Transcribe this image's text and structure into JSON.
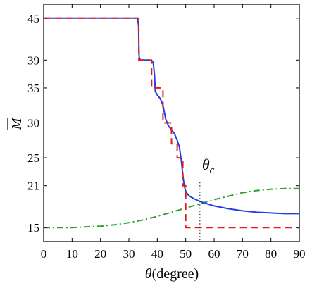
{
  "chart_data": {
    "type": "line",
    "xlabel_symbol": "θ",
    "xlabel_unit": "(degree)",
    "ylabel": "M",
    "xlim": [
      0,
      90
    ],
    "ylim": [
      13,
      47
    ],
    "xticks": [
      0,
      10,
      20,
      30,
      40,
      50,
      60,
      70,
      80,
      90
    ],
    "yticks": [
      15,
      21,
      25,
      30,
      35,
      39,
      45
    ],
    "grid": false,
    "legend": "none",
    "annotation": {
      "symbol": "θ",
      "subscript": "c",
      "x": 55
    },
    "series": [
      {
        "color": "#e8191c",
        "style": "dashed",
        "x": [
          0,
          33.5,
          33.5,
          38,
          38,
          40,
          40,
          42,
          42,
          45,
          45,
          47,
          47,
          49,
          49,
          50,
          50,
          90
        ],
        "y": [
          45,
          45,
          39,
          39,
          35,
          35,
          35,
          35,
          30,
          30,
          27,
          27,
          25,
          25,
          21,
          21,
          15,
          15
        ]
      },
      {
        "color": "#1f3fe0",
        "style": "solid",
        "x": [
          0,
          33,
          33.4,
          33.6,
          34,
          37,
          38.5,
          39,
          39.3,
          40,
          41,
          42,
          43,
          44,
          45,
          46,
          47,
          47.8,
          48.5,
          49,
          49.5,
          50,
          51,
          53,
          56,
          60,
          65,
          70,
          75,
          80,
          85,
          90
        ],
        "y": [
          45,
          45,
          44,
          39.5,
          39,
          39,
          38.8,
          37,
          34.5,
          34,
          33.5,
          32.5,
          30.5,
          29.5,
          29,
          28.5,
          27.5,
          26.5,
          24.5,
          22.5,
          21,
          20.2,
          19.6,
          19.1,
          18.6,
          18.1,
          17.7,
          17.4,
          17.2,
          17.1,
          17.0,
          17.0
        ]
      },
      {
        "color": "#2ea02e",
        "style": "dashdot",
        "x": [
          0,
          10,
          20,
          25,
          30,
          35,
          40,
          45,
          50,
          55,
          60,
          65,
          70,
          75,
          80,
          85,
          90
        ],
        "y": [
          15,
          15,
          15.2,
          15.4,
          15.7,
          16.1,
          16.6,
          17.2,
          17.8,
          18.4,
          19.0,
          19.5,
          20.0,
          20.3,
          20.5,
          20.6,
          20.6
        ]
      }
    ]
  }
}
